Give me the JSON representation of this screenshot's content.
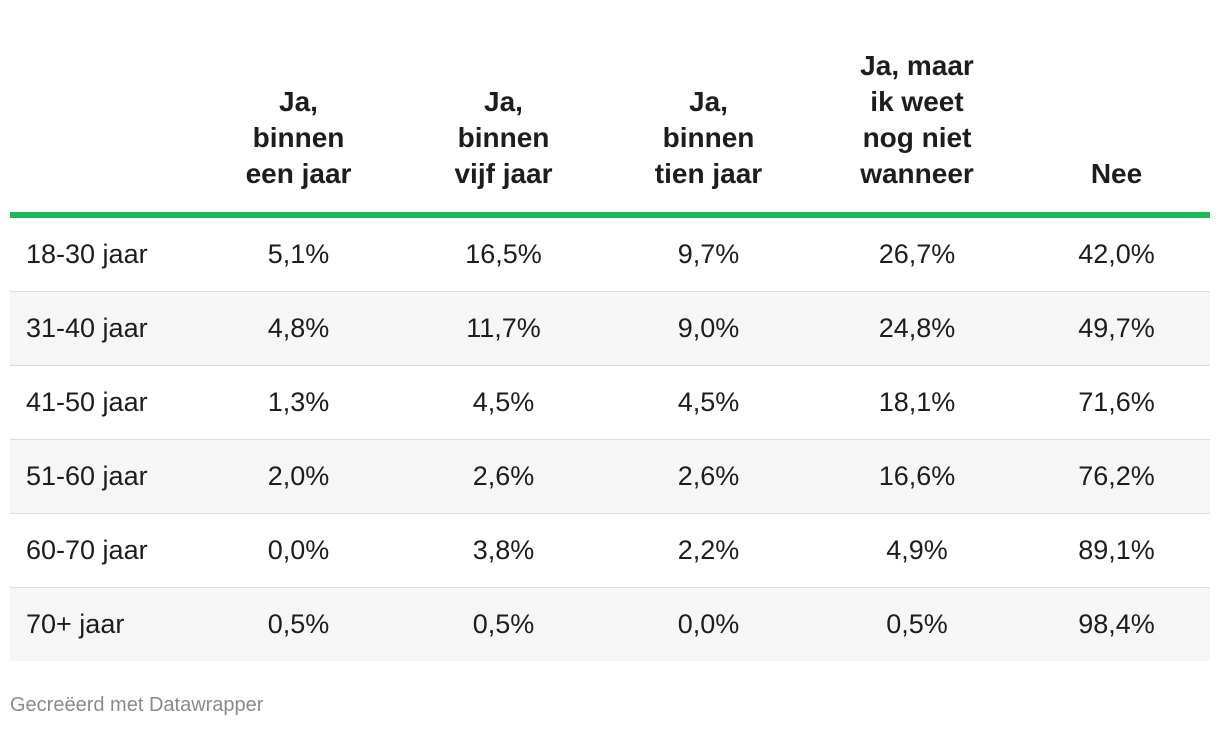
{
  "chart_data": {
    "type": "table",
    "columns": [
      "",
      "Ja, binnen een jaar",
      "Ja, binnen vijf jaar",
      "Ja, binnen tien jaar",
      "Ja, maar ik weet nog niet wanneer",
      "Nee"
    ],
    "rows": [
      {
        "label": "18-30 jaar",
        "values": [
          "5,1%",
          "16,5%",
          "9,7%",
          "26,7%",
          "42,0%"
        ]
      },
      {
        "label": "31-40 jaar",
        "values": [
          "4,8%",
          "11,7%",
          "9,0%",
          "24,8%",
          "49,7%"
        ]
      },
      {
        "label": "41-50 jaar",
        "values": [
          "1,3%",
          "4,5%",
          "4,5%",
          "18,1%",
          "71,6%"
        ]
      },
      {
        "label": "51-60 jaar",
        "values": [
          "2,0%",
          "2,6%",
          "2,6%",
          "16,6%",
          "76,2%"
        ]
      },
      {
        "label": "60-70 jaar",
        "values": [
          "0,0%",
          "3,8%",
          "2,2%",
          "4,9%",
          "89,1%"
        ]
      },
      {
        "label": "70+ jaar",
        "values": [
          "0,5%",
          "0,5%",
          "0,0%",
          "0,5%",
          "98,4%"
        ]
      }
    ],
    "header_rule_color": "#1db954",
    "stripe_color": "#f6f6f6"
  },
  "footer": {
    "credit": "Gecreëerd met Datawrapper"
  }
}
